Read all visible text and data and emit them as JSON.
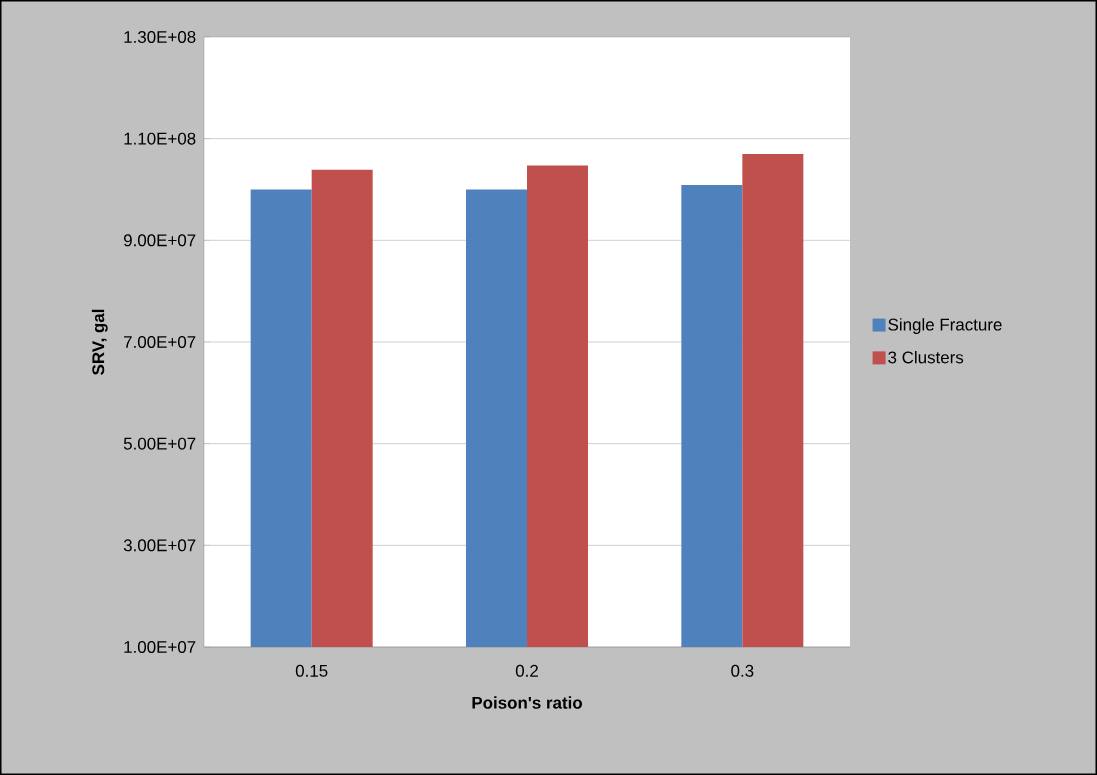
{
  "chart_data": {
    "type": "bar",
    "xlabel": "Poison's ratio",
    "ylabel": "SRV, gal",
    "categories": [
      "0.15",
      "0.2",
      "0.3"
    ],
    "series": [
      {
        "name": "Single Fracture",
        "color": "#4f81bd",
        "values": [
          100000000,
          100000000,
          100900000
        ]
      },
      {
        "name": "3 Clusters",
        "color": "#c0504d",
        "values": [
          103900000,
          104700000,
          107000000
        ]
      }
    ],
    "ylim": [
      10000000,
      130000000
    ],
    "yticks": [
      {
        "value": 10000000,
        "label": "1.00E+07"
      },
      {
        "value": 30000000,
        "label": "3.00E+07"
      },
      {
        "value": 50000000,
        "label": "5.00E+07"
      },
      {
        "value": 70000000,
        "label": "7.00E+07"
      },
      {
        "value": 90000000,
        "label": "9.00E+07"
      },
      {
        "value": 110000000,
        "label": "1.10E+08"
      },
      {
        "value": 130000000,
        "label": "1.30E+08"
      }
    ],
    "grid": "y",
    "legend": "right"
  }
}
